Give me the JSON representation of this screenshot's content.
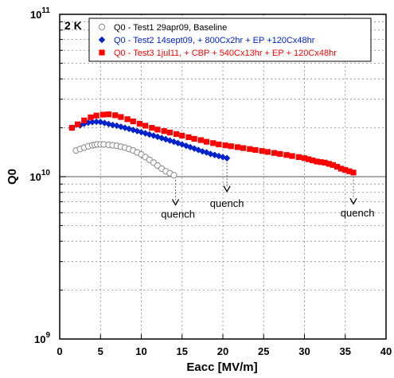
{
  "chart_data": {
    "type": "scatter",
    "title": "",
    "panel_label": "2 K",
    "xlabel": "Eacc   [MV/m]",
    "ylabel": "Q0",
    "xlim": [
      0,
      40
    ],
    "ylim": [
      1000000000.0,
      100000000000.0
    ],
    "yscale": "log",
    "xticks": [
      0,
      5,
      10,
      15,
      20,
      25,
      30,
      35,
      40
    ],
    "ytick_labels": [
      {
        "value": 1000000000.0,
        "base": "10",
        "exp": "9"
      },
      {
        "value": 10000000000.0,
        "base": "10",
        "exp": "10"
      },
      {
        "value": 100000000000.0,
        "base": "10",
        "exp": "11"
      }
    ],
    "grid": true,
    "legend_position": "top",
    "reference_line": 10000000000.0,
    "series": [
      {
        "name": "Q0 - Test1 29apr09, Baseline",
        "marker": "open-circle",
        "color": "#888888",
        "text_color": "#000000",
        "x": [
          2.0,
          2.5,
          3.0,
          3.5,
          4.0,
          4.3,
          4.6,
          5.0,
          5.4,
          6.0,
          6.5,
          7.0,
          7.5,
          8.0,
          8.5,
          9.0,
          9.5,
          10.0,
          10.5,
          11.0,
          11.5,
          12.0,
          12.5,
          13.0,
          13.5,
          14.0
        ],
        "y": [
          14500000000.0,
          14800000000.0,
          15100000000.0,
          15400000000.0,
          15600000000.0,
          15700000000.0,
          15800000000.0,
          15800000000.0,
          15800000000.0,
          15700000000.0,
          15600000000.0,
          15500000000.0,
          15300000000.0,
          15100000000.0,
          14800000000.0,
          14500000000.0,
          14100000000.0,
          13700000000.0,
          13200000000.0,
          12700000000.0,
          12200000000.0,
          11700000000.0,
          11200000000.0,
          10800000000.0,
          10500000000.0,
          10200000000.0
        ]
      },
      {
        "name": "Q0 - Test2 14sept09, + 800Cx2hr + EP +120Cx48hr",
        "marker": "filled-diamond",
        "color": "#0022cc",
        "text_color": "#0022cc",
        "x": [
          1.5,
          2.5,
          3.0,
          3.5,
          4.0,
          4.5,
          5.0,
          5.5,
          6.0,
          6.5,
          7.0,
          7.5,
          8.0,
          8.5,
          9.0,
          9.5,
          10.0,
          10.5,
          11.0,
          11.5,
          12.0,
          12.5,
          13.0,
          13.5,
          14.0,
          14.5,
          15.0,
          15.5,
          16.0,
          16.5,
          17.0,
          17.5,
          18.0,
          18.5,
          19.0,
          19.5,
          20.0,
          20.5
        ],
        "y": [
          20000000000.0,
          20700000000.0,
          21200000000.0,
          21500000000.0,
          21700000000.0,
          21800000000.0,
          21700000000.0,
          21400000000.0,
          21100000000.0,
          20800000000.0,
          20600000000.0,
          20300000000.0,
          20000000000.0,
          19700000000.0,
          19400000000.0,
          19100000000.0,
          18800000000.0,
          18500000000.0,
          18200000000.0,
          17900000000.0,
          17600000000.0,
          17300000000.0,
          17000000000.0,
          16700000000.0,
          16400000000.0,
          16100000000.0,
          15800000000.0,
          15500000000.0,
          15200000000.0,
          14900000000.0,
          14600000000.0,
          14300000000.0,
          14100000000.0,
          13800000000.0,
          13600000000.0,
          13400000000.0,
          13200000000.0,
          13000000000.0
        ]
      },
      {
        "name": "Q0 - Test3 1jul11, + CBP + 540Cx13hr + EP + 120Cx48hr",
        "marker": "filled-square",
        "color": "#ff0000",
        "text_color": "#ff0000",
        "x": [
          1.5,
          2.2,
          3.0,
          3.8,
          4.5,
          5.3,
          6.0,
          6.8,
          7.5,
          8.3,
          9.0,
          9.8,
          10.5,
          11.3,
          12.0,
          12.8,
          13.5,
          14.3,
          15.0,
          15.8,
          16.5,
          17.3,
          18.0,
          18.8,
          19.5,
          20.3,
          21.0,
          21.8,
          22.5,
          23.3,
          24.0,
          24.8,
          25.5,
          26.3,
          27.0,
          27.8,
          28.5,
          29.3,
          30.0,
          30.5,
          31.0,
          31.5,
          32.0,
          32.5,
          33.0,
          33.5,
          34.0,
          34.5,
          35.0,
          35.5,
          36.0
        ],
        "y": [
          20000000000.0,
          21000000000.0,
          22200000000.0,
          23200000000.0,
          23800000000.0,
          24100000000.0,
          24200000000.0,
          23900000000.0,
          23300000000.0,
          22600000000.0,
          21900000000.0,
          21200000000.0,
          20600000000.0,
          20000000000.0,
          19500000000.0,
          19100000000.0,
          18700000000.0,
          18300000000.0,
          17900000000.0,
          17500000000.0,
          17100000000.0,
          16800000000.0,
          16400000000.0,
          16100000000.0,
          15800000000.0,
          15600000000.0,
          15400000000.0,
          15200000000.0,
          15000000000.0,
          14800000000.0,
          14600000000.0,
          14400000000.0,
          14200000000.0,
          14000000000.0,
          13800000000.0,
          13600000000.0,
          13400000000.0,
          13200000000.0,
          13000000000.0,
          12800000000.0,
          12600000000.0,
          12400000000.0,
          12300000000.0,
          12200000000.0,
          12000000000.0,
          11800000000.0,
          11500000000.0,
          11200000000.0,
          11000000000.0,
          10800000000.0,
          10600000000.0
        ]
      }
    ],
    "annotations": [
      {
        "text": "quench",
        "x_label": 14.5,
        "y_label": 5600000000.0,
        "arrow_x": 14.2,
        "arrow_y_start": 10000000000.0,
        "arrow_y_end": 6700000000.0
      },
      {
        "text": "quench",
        "x_label": 20.5,
        "y_label": 6500000000.0,
        "arrow_x": 20.5,
        "arrow_y_start": 12800000000.0,
        "arrow_y_end": 8100000000.0
      },
      {
        "text": "quench",
        "x_label": 36.5,
        "y_label": 5700000000.0,
        "arrow_x": 36.0,
        "arrow_y_start": 10500000000.0,
        "arrow_y_end": 6800000000.0
      }
    ]
  }
}
